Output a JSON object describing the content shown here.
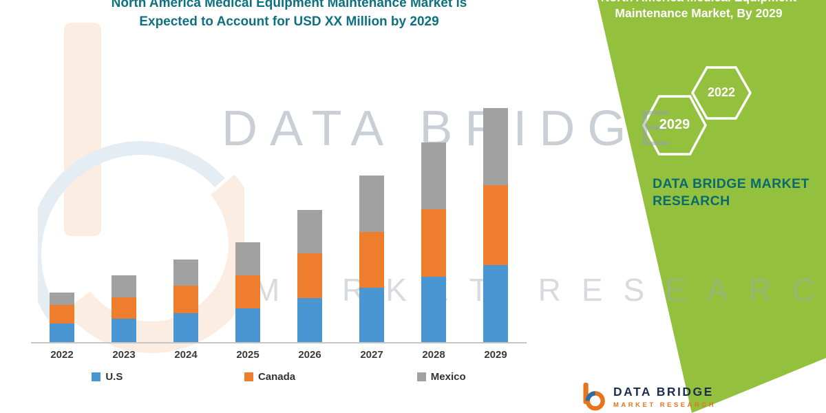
{
  "title": {
    "line1": "North America Medical Equipment Maintenance Market is",
    "line2": "Expected to Account for USD XX Million by 2029"
  },
  "side_panel": {
    "heading_line1": "North America Medical Equipment",
    "heading_line2": "Maintenance Market, By 2029",
    "hexagons": [
      {
        "label": "2029"
      },
      {
        "label": "2022"
      }
    ],
    "brand_line1": "DATA BRIDGE MARKET",
    "brand_line2": "RESEARCH"
  },
  "watermark": {
    "line1": "DATA BRIDGE",
    "line2": "MARKET RESEARCH"
  },
  "footer_logo": {
    "name": "DATA BRIDGE",
    "subtext": "MARKET RESEARCH"
  },
  "colors": {
    "title_teal": "#0e7180",
    "panel_green": "#93c13e",
    "brand_teal": "#0a6a6e",
    "us_blue": "#4a96d2",
    "canada_orange": "#ee7d2e",
    "mexico_gray": "#a1a1a1",
    "footer_navy": "#1c2f4e",
    "footer_orange": "#e8731a"
  },
  "chart_data": {
    "type": "bar",
    "stacked": true,
    "title": "North America Medical Equipment Maintenance Market is Expected to Account for USD XX Million by 2029",
    "categories": [
      "2022",
      "2023",
      "2024",
      "2025",
      "2026",
      "2027",
      "2028",
      "2029"
    ],
    "series": [
      {
        "name": "U.S",
        "color": "#4a96d2",
        "values": [
          27,
          34,
          42,
          49,
          64,
          79,
          95,
          112
        ]
      },
      {
        "name": "Canada",
        "color": "#ee7d2e",
        "values": [
          27,
          31,
          40,
          48,
          65,
          81,
          97,
          115
        ]
      },
      {
        "name": "Mexico",
        "color": "#a1a1a1",
        "values": [
          18,
          32,
          38,
          48,
          62,
          81,
          97,
          112
        ]
      }
    ],
    "xlabel": "",
    "ylabel": "",
    "value_axis": "hidden",
    "legend_position": "bottom",
    "grid": false,
    "note": "Value axis not shown in source image; series values are relative estimates of stacked bar segment heights (USD XX Million undisclosed)."
  }
}
